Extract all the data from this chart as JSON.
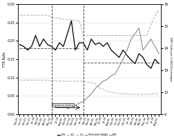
{
  "title": "",
  "xlabel": "",
  "ylabel_left": "FTR Rate",
  "ylabel_right": "RRT Calls per 1,000 Discharges",
  "ylim_left": [
    0,
    0.3
  ],
  "ylim_right": [
    6,
    36
  ],
  "n_points": 36,
  "x_labels": [
    "Sep-03",
    "Oct-03",
    "Nov-03",
    "Dec-03",
    "Jan-04",
    "Feb-04",
    "Mar-04",
    "Apr-04",
    "May-04",
    "Jun-04",
    "Jul-04",
    "Aug-04",
    "Sep-04",
    "Oct-04",
    "Nov-04",
    "Dec-04",
    "Jan-05",
    "Feb-05",
    "Mar-05",
    "Apr-05",
    "May-05",
    "Jun-05",
    "Jul-05",
    "Aug-05",
    "Sep-05",
    "Oct-05",
    "Nov-05",
    "Dec-05",
    "Jan-06",
    "Feb-06",
    "Mar-06",
    "Apr-06",
    "May-06",
    "Jun-06",
    "Jul-06",
    "Aug-06"
  ],
  "vline1": 8,
  "vline2": 16,
  "ftr": [
    0.19,
    0.185,
    0.175,
    0.185,
    0.215,
    0.185,
    0.205,
    0.19,
    0.185,
    0.175,
    0.195,
    0.185,
    0.22,
    0.255,
    0.175,
    0.195,
    0.195,
    0.175,
    0.205,
    0.19,
    0.195,
    0.185,
    0.195,
    0.175,
    0.165,
    0.155,
    0.175,
    0.16,
    0.148,
    0.138,
    0.165,
    0.155,
    0.135,
    0.125,
    0.15,
    0.138
  ],
  "ucl": [
    0.27,
    0.27,
    0.27,
    0.27,
    0.27,
    0.27,
    0.27,
    0.27,
    0.265,
    0.263,
    0.261,
    0.26,
    0.258,
    0.257,
    0.256,
    0.255,
    0.215,
    0.215,
    0.215,
    0.215,
    0.215,
    0.215,
    0.215,
    0.215,
    0.215,
    0.215,
    0.215,
    0.215,
    0.215,
    0.215,
    0.215,
    0.215,
    0.215,
    0.245,
    0.268,
    0.285
  ],
  "lcl": [
    0.093,
    0.093,
    0.093,
    0.093,
    0.093,
    0.093,
    0.093,
    0.093,
    0.092,
    0.091,
    0.09,
    0.09,
    0.09,
    0.09,
    0.09,
    0.09,
    0.09,
    0.088,
    0.086,
    0.084,
    0.072,
    0.068,
    0.062,
    0.06,
    0.058,
    0.056,
    0.056,
    0.055,
    0.054,
    0.054,
    0.054,
    0.054,
    0.054,
    0.055,
    0.056,
    0.057
  ],
  "mean_pre": [
    0.18,
    0.18,
    0.18,
    0.18,
    0.18,
    0.18,
    0.18,
    0.18,
    0.18,
    0.18,
    0.18,
    0.18,
    0.18,
    0.18,
    0.18,
    0.18,
    null,
    null,
    null,
    null,
    null,
    null,
    null,
    null,
    null,
    null,
    null,
    null,
    null,
    null,
    null,
    null,
    null,
    null,
    null,
    null
  ],
  "mean_post": [
    null,
    null,
    null,
    null,
    null,
    null,
    null,
    null,
    null,
    null,
    null,
    null,
    null,
    null,
    null,
    null,
    0.14,
    0.14,
    0.14,
    0.14,
    0.14,
    0.14,
    0.14,
    0.14,
    0.14,
    0.14,
    0.14,
    0.14,
    0.14,
    0.14,
    0.14,
    0.14,
    0.14,
    0.14,
    0.14,
    0.14
  ],
  "rrt_right": [
    null,
    null,
    null,
    null,
    null,
    null,
    null,
    null,
    null,
    null,
    null,
    null,
    7.5,
    7.8,
    8.5,
    9.0,
    9.5,
    10.5,
    11.5,
    13.0,
    14.0,
    15.0,
    15.5,
    16.5,
    17.0,
    19.0,
    21.0,
    23.5,
    26.5,
    28.0,
    29.5,
    23.5,
    25.0,
    26.5,
    24.5,
    22.5
  ],
  "ftr_color": "#111111",
  "ucl_color": "#aaaaaa",
  "lcl_color": "#aaaaaa",
  "mean_color": "#555555",
  "rrt_color": "#888888",
  "vline_color": "#444444",
  "annotation": "Implementation",
  "background_color": "#ffffff",
  "grid_color": "#dddddd"
}
